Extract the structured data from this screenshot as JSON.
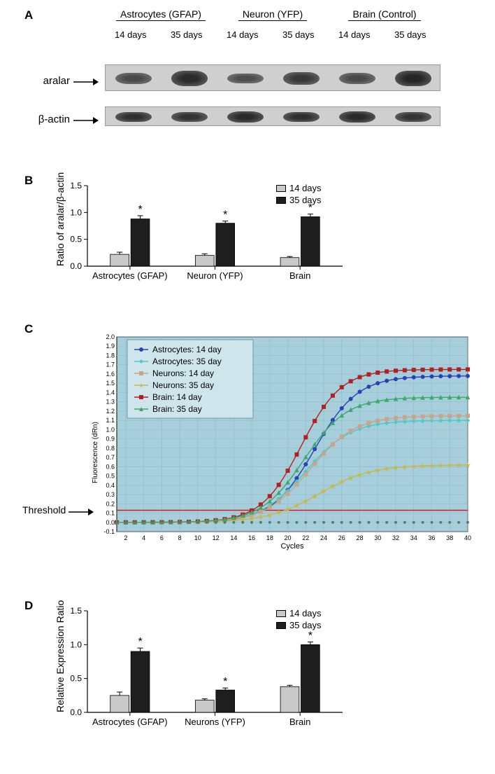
{
  "panelA": {
    "label": "A",
    "columns": [
      {
        "title": "Astrocytes (GFAP)",
        "days": [
          "14 days",
          "35 days"
        ]
      },
      {
        "title": "Neuron (YFP)",
        "days": [
          "14 days",
          "35 days"
        ]
      },
      {
        "title": "Brain (Control)",
        "days": [
          "14 days",
          "35 days"
        ]
      }
    ],
    "rows": [
      {
        "label": "aralar",
        "gel_height": 38
      },
      {
        "label": "β-actin",
        "gel_height": 28
      }
    ],
    "gel_bg": "#cfcfcf",
    "band_color": "#2a2a2a",
    "band_intensities_aralar": [
      0.55,
      0.9,
      0.5,
      0.75,
      0.55,
      0.95
    ],
    "band_intensities_bactin": [
      0.85,
      0.8,
      0.9,
      0.85,
      0.9,
      0.8
    ]
  },
  "panelB": {
    "label": "B",
    "ylabel": "Ratio of aralar/β-actin",
    "ylim": [
      0,
      1.5
    ],
    "ytick_step": 0.5,
    "categories": [
      "Astrocytes (GFAP)",
      "Neuron (YFP)",
      "Brain"
    ],
    "series": [
      {
        "name": "14 days",
        "color": "#c9c9c9",
        "values": [
          0.22,
          0.2,
          0.16
        ],
        "errors": [
          0.04,
          0.03,
          0.02
        ],
        "sig": [
          false,
          false,
          false
        ]
      },
      {
        "name": "35 days",
        "color": "#1e1e1e",
        "values": [
          0.88,
          0.8,
          0.92
        ],
        "errors": [
          0.06,
          0.04,
          0.05
        ],
        "sig": [
          true,
          true,
          true
        ]
      }
    ],
    "bar_group_gap": 0.45,
    "bar_width": 0.22,
    "axis_color": "#000000",
    "sig_marker": "*",
    "label_fontsize": 13
  },
  "panelC": {
    "label": "C",
    "bg_color": "#a6cedb",
    "plot_border": "#000000",
    "grid_color": "#8fbccb",
    "threshold_label": "Threshold",
    "threshold_value": 0.13,
    "threshold_line_color": "#d92020",
    "xlim": [
      1,
      40
    ],
    "xtick_step": 2,
    "ylim": [
      -0.1,
      2.0
    ],
    "ytick_step": 0.1,
    "xlabel": "Cycles",
    "ylabel": "Fluorescence (dRn)",
    "axis_fontsize": 9,
    "legend_fontsize": 12,
    "series": [
      {
        "name": "Astrocytes: 14 day",
        "color": "#2a40b5",
        "marker": "circle",
        "ct": 19.0,
        "plateau": 1.58,
        "slope": 0.42
      },
      {
        "name": "Astrocytes: 35 day",
        "color": "#4fc9c6",
        "marker": "diamond",
        "ct": 18.0,
        "plateau": 1.1,
        "slope": 0.4
      },
      {
        "name": "Neurons: 14 day",
        "color": "#c9a48a",
        "marker": "square",
        "ct": 18.5,
        "plateau": 1.15,
        "slope": 0.4
      },
      {
        "name": "Neurons: 35 day",
        "color": "#c6b84a",
        "marker": "star",
        "ct": 19.5,
        "plateau": 0.62,
        "slope": 0.35
      },
      {
        "name": "Brain: 14 day",
        "color": "#b51e20",
        "marker": "square",
        "ct": 17.5,
        "plateau": 1.65,
        "slope": 0.45
      },
      {
        "name": "Brain: 35 day",
        "color": "#3fa86b",
        "marker": "triangle",
        "ct": 17.8,
        "plateau": 1.35,
        "slope": 0.42
      }
    ],
    "baseline_noise": 0.0
  },
  "panelD": {
    "label": "D",
    "ylabel": "Relative Expression Ratio",
    "ylim": [
      0,
      1.5
    ],
    "ytick_step": 0.5,
    "categories": [
      "Astrocytes (GFAP)",
      "Neurons (YFP)",
      "Brain"
    ],
    "series": [
      {
        "name": "14 days",
        "color": "#c9c9c9",
        "values": [
          0.25,
          0.18,
          0.38
        ],
        "errors": [
          0.05,
          0.02,
          0.02
        ],
        "sig": [
          false,
          false,
          false
        ]
      },
      {
        "name": "35 days",
        "color": "#1e1e1e",
        "values": [
          0.9,
          0.33,
          1.0
        ],
        "errors": [
          0.05,
          0.03,
          0.04
        ],
        "sig": [
          true,
          true,
          true
        ]
      }
    ],
    "bar_group_gap": 0.45,
    "bar_width": 0.22,
    "axis_color": "#000000",
    "sig_marker": "*",
    "label_fontsize": 13
  }
}
